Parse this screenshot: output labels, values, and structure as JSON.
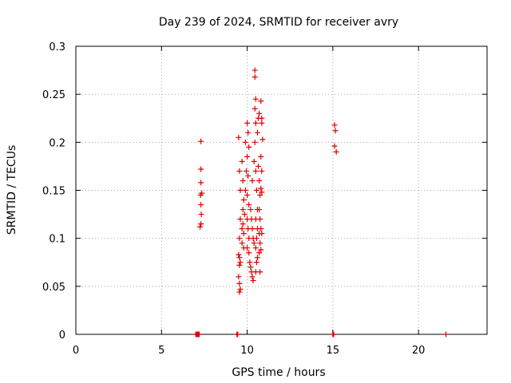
{
  "chart_data": {
    "type": "scatter",
    "title": "Day 239 of 2024, SRMTID for receiver avry",
    "xlabel": "GPS time / hours",
    "ylabel": "SRMTID / TECUs",
    "xlim": [
      0,
      24
    ],
    "ylim": [
      0,
      0.3
    ],
    "xticks": [
      "0",
      "5",
      "10",
      "15",
      "20"
    ],
    "xtick_values": [
      0,
      5,
      10,
      15,
      20
    ],
    "yticks": [
      "0",
      "0.05",
      "0.1",
      "0.15",
      "0.2",
      "0.25",
      "0.3"
    ],
    "ytick_values": [
      0,
      0.05,
      0.1,
      0.15,
      0.2,
      0.25,
      0.3
    ],
    "grid": true,
    "marker": "plus",
    "color": "#dd0000",
    "series": [
      {
        "points": [
          [
            7.0,
            0.0
          ],
          [
            7.05,
            0.0
          ],
          [
            7.1,
            0.0
          ],
          [
            7.15,
            0.0
          ],
          [
            7.2,
            0.0
          ],
          [
            7.25,
            0.112
          ],
          [
            7.3,
            0.115
          ],
          [
            7.32,
            0.125
          ],
          [
            7.3,
            0.135
          ],
          [
            7.28,
            0.145
          ],
          [
            7.35,
            0.147
          ],
          [
            7.3,
            0.158
          ],
          [
            7.3,
            0.172
          ],
          [
            7.3,
            0.201
          ],
          [
            9.4,
            0.0
          ],
          [
            9.45,
            0.0
          ],
          [
            9.5,
            0.205
          ],
          [
            9.55,
            0.17
          ],
          [
            9.6,
            0.15
          ],
          [
            9.6,
            0.12
          ],
          [
            9.55,
            0.1
          ],
          [
            9.5,
            0.083
          ],
          [
            9.55,
            0.08
          ],
          [
            9.6,
            0.075
          ],
          [
            9.55,
            0.072
          ],
          [
            9.5,
            0.06
          ],
          [
            9.55,
            0.053
          ],
          [
            9.6,
            0.047
          ],
          [
            9.55,
            0.044
          ],
          [
            9.7,
            0.18
          ],
          [
            9.75,
            0.16
          ],
          [
            9.8,
            0.14
          ],
          [
            9.75,
            0.13
          ],
          [
            9.7,
            0.11
          ],
          [
            9.8,
            0.105
          ],
          [
            9.7,
            0.095
          ],
          [
            9.75,
            0.115
          ],
          [
            9.85,
            0.125
          ],
          [
            9.8,
            0.09
          ],
          [
            9.9,
            0.15
          ],
          [
            9.95,
            0.17
          ],
          [
            9.9,
            0.2
          ],
          [
            10.0,
            0.185
          ],
          [
            10.05,
            0.21
          ],
          [
            10.0,
            0.22
          ],
          [
            10.1,
            0.195
          ],
          [
            10.05,
            0.165
          ],
          [
            10.0,
            0.145
          ],
          [
            10.1,
            0.135
          ],
          [
            10.0,
            0.12
          ],
          [
            10.05,
            0.11
          ],
          [
            10.1,
            0.1
          ],
          [
            10.0,
            0.09
          ],
          [
            10.1,
            0.085
          ],
          [
            10.15,
            0.075
          ],
          [
            10.2,
            0.07
          ],
          [
            10.25,
            0.065
          ],
          [
            10.3,
            0.06
          ],
          [
            10.35,
            0.056
          ],
          [
            10.2,
            0.13
          ],
          [
            10.25,
            0.12
          ],
          [
            10.3,
            0.11
          ],
          [
            10.35,
            0.1
          ],
          [
            10.4,
            0.095
          ],
          [
            10.3,
            0.16
          ],
          [
            10.4,
            0.18
          ],
          [
            10.45,
            0.2
          ],
          [
            10.5,
            0.22
          ],
          [
            10.45,
            0.235
          ],
          [
            10.5,
            0.245
          ],
          [
            10.45,
            0.268
          ],
          [
            10.45,
            0.275
          ],
          [
            10.5,
            0.17
          ],
          [
            10.55,
            0.15
          ],
          [
            10.6,
            0.13
          ],
          [
            10.5,
            0.12
          ],
          [
            10.6,
            0.11
          ],
          [
            10.55,
            0.1
          ],
          [
            10.5,
            0.09
          ],
          [
            10.6,
            0.08
          ],
          [
            10.55,
            0.075
          ],
          [
            10.5,
            0.065
          ],
          [
            10.6,
            0.21
          ],
          [
            10.65,
            0.225
          ],
          [
            10.7,
            0.23
          ],
          [
            10.65,
            0.175
          ],
          [
            10.7,
            0.16
          ],
          [
            10.75,
            0.145
          ],
          [
            10.7,
            0.13
          ],
          [
            10.75,
            0.12
          ],
          [
            10.7,
            0.105
          ],
          [
            10.75,
            0.095
          ],
          [
            10.7,
            0.085
          ],
          [
            10.8,
            0.088
          ],
          [
            10.75,
            0.065
          ],
          [
            10.8,
            0.243
          ],
          [
            10.85,
            0.225
          ],
          [
            10.85,
            0.22
          ],
          [
            10.9,
            0.203
          ],
          [
            10.8,
            0.185
          ],
          [
            10.85,
            0.17
          ],
          [
            10.8,
            0.152
          ],
          [
            10.85,
            0.148
          ],
          [
            10.8,
            0.11
          ],
          [
            10.85,
            0.105
          ],
          [
            15.0,
            0.0
          ],
          [
            15.05,
            0.0
          ],
          [
            15.1,
            0.218
          ],
          [
            15.15,
            0.212
          ],
          [
            15.1,
            0.196
          ],
          [
            15.2,
            0.19
          ],
          [
            21.6,
            0.0
          ]
        ]
      }
    ]
  }
}
